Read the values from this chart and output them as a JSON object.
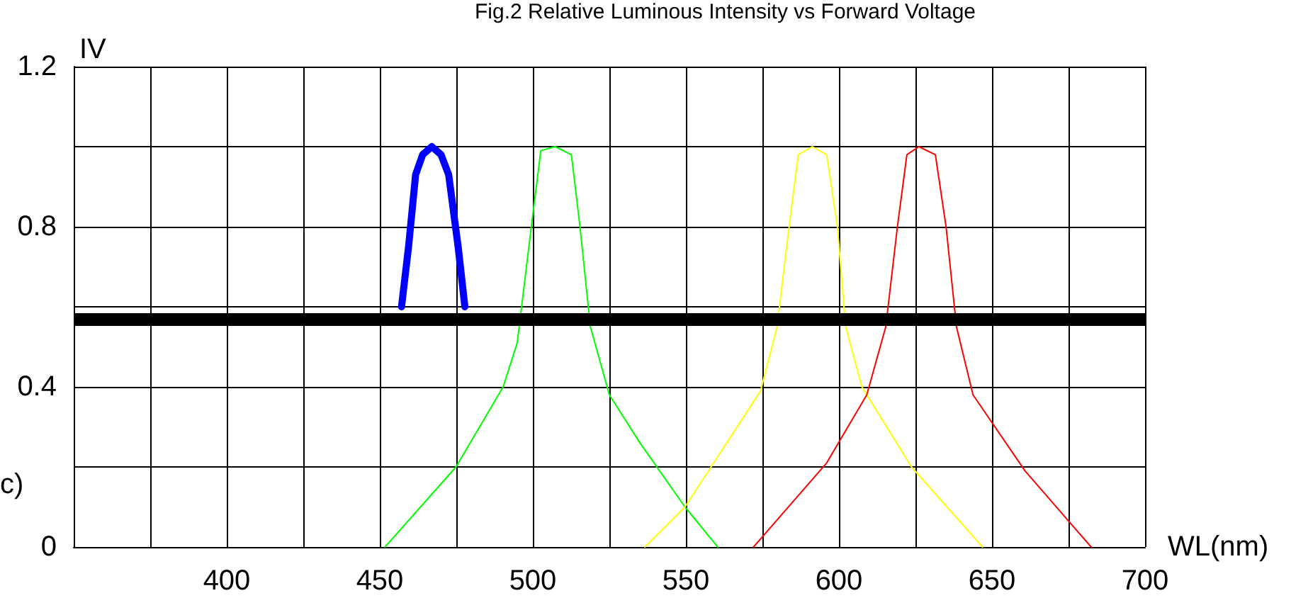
{
  "chart_data": {
    "type": "line",
    "title": "Fig.2 Relative Luminous Intensity vs Forward Voltage",
    "xlabel": "WL(nm)",
    "ylabel": "IV",
    "annotations": [
      "c)"
    ],
    "xlim": [
      350,
      700
    ],
    "ylim": [
      0,
      1.2
    ],
    "xticks": [
      {
        "value": 350,
        "label": null
      },
      {
        "value": 375,
        "label": null
      },
      400,
      {
        "value": 425,
        "label": null
      },
      450,
      {
        "value": 475,
        "label": null
      },
      500,
      {
        "value": 525,
        "label": null
      },
      550,
      {
        "value": 575,
        "label": null
      },
      600,
      {
        "value": 625,
        "label": null
      },
      650,
      {
        "value": 675,
        "label": null
      },
      700
    ],
    "yticks": [
      0,
      {
        "value": 0.2,
        "label": null
      },
      0.4,
      {
        "value": 0.6,
        "label": null
      },
      0.8,
      {
        "value": 1.0,
        "label": null
      },
      1.2
    ],
    "grid": true,
    "line_style": "solid",
    "series": [
      {
        "color": "#0000ff",
        "x": [
          457.1,
          459.4,
          461.7,
          464,
          467,
          470,
          472.5,
          475.6,
          477.8
        ],
        "values": [
          0.6,
          0.75,
          0.93,
          0.98,
          1.0,
          0.98,
          0.93,
          0.75,
          0.6
        ]
      },
      {
        "color": "#00ff00",
        "x": [
          451.7,
          474.9,
          490.3,
          494.9,
          499.5,
          502.6,
          507.3,
          512.6,
          515.4,
          518.8,
          525,
          535,
          549.7,
          560.4
        ],
        "values": [
          0,
          0.2,
          0.4,
          0.51,
          0.8,
          0.99,
          1.0,
          0.98,
          0.8,
          0.55,
          0.38,
          0.26,
          0.1,
          0
        ]
      },
      {
        "color": "#ffff00",
        "x": [
          536.6,
          549.7,
          574.4,
          579.8,
          582.9,
          586.7,
          591.3,
          596,
          599.5,
          602.2,
          607.5,
          623.7,
          646.9
        ],
        "values": [
          0,
          0.1,
          0.39,
          0.55,
          0.75,
          0.98,
          1.0,
          0.98,
          0.8,
          0.55,
          0.4,
          0.2,
          0
        ]
      },
      {
        "color": "#ff0000",
        "x": [
          572.1,
          596,
          609.1,
          615.3,
          619.1,
          622.2,
          626.1,
          631.5,
          635,
          638.4,
          643.8,
          660.8,
          682.4
        ],
        "values": [
          0,
          0.21,
          0.38,
          0.55,
          0.8,
          0.98,
          1.0,
          0.98,
          0.8,
          0.55,
          0.38,
          0.19,
          0
        ]
      }
    ],
    "ref_lines": [
      {
        "axis": "y",
        "value": 0.57,
        "color": "#000000",
        "line_style": "solid"
      }
    ]
  }
}
